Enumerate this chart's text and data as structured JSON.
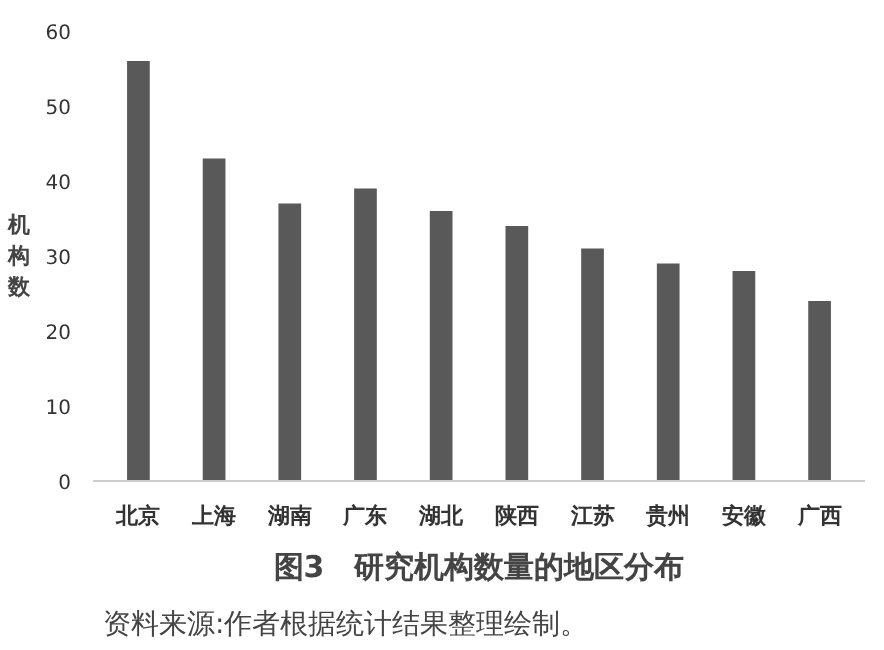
{
  "chart_data": {
    "type": "bar",
    "title": "图3　研究机构数量的地区分布",
    "ylabel": "机构数",
    "categories": [
      "北京",
      "上海",
      "湖南",
      "广东",
      "湖北",
      "陕西",
      "江苏",
      "贵州",
      "安徽",
      "广西"
    ],
    "values": [
      56,
      43,
      37,
      39,
      36,
      34,
      31,
      29,
      28,
      24
    ],
    "color": "#595959",
    "ylim": [
      0,
      60
    ],
    "yticks": [
      0,
      10,
      20,
      30,
      40,
      50,
      60
    ],
    "grid": false,
    "annotations": [
      "资料来源:作者根据统计结果整理绘制。"
    ]
  }
}
